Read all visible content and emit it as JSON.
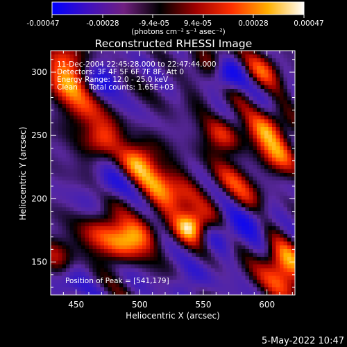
{
  "colorbar": {
    "ticks": [
      "-0.00047",
      "-0.00028",
      "-9.4e-05",
      "9.4e-05",
      "0.00028",
      "0.00047"
    ],
    "range": [
      -0.00047,
      0.00047
    ],
    "units": "(photons cm⁻² s⁻¹ asec⁻²)",
    "colors": [
      "#0000ff",
      "#4010c0",
      "#702080",
      "#000000",
      "#a00000",
      "#ff3000",
      "#ffb000",
      "#ffffff"
    ]
  },
  "chart_data": {
    "type": "heatmap",
    "title": "Reconstructed RHESSI Image",
    "xlabel": "Heliocentric X (arcsec)",
    "ylabel": "Heliocentric Y (arcsec)",
    "xlim": [
      430,
      622
    ],
    "ylim": [
      124,
      317
    ],
    "xticks": [
      450,
      500,
      550,
      600
    ],
    "yticks": [
      150,
      200,
      250,
      300
    ],
    "peak": {
      "x": 541,
      "y": 179
    },
    "sources": [
      {
        "x": 541,
        "y": 179,
        "intensity": 1.0
      },
      {
        "x": 530,
        "y": 200,
        "intensity": 0.5
      },
      {
        "x": 500,
        "y": 230,
        "intensity": 0.7
      },
      {
        "x": 470,
        "y": 248,
        "intensity": 0.6
      },
      {
        "x": 515,
        "y": 212,
        "intensity": 0.55
      },
      {
        "x": 445,
        "y": 290,
        "intensity": 0.65
      },
      {
        "x": 440,
        "y": 310,
        "intensity": 0.55
      },
      {
        "x": 455,
        "y": 270,
        "intensity": 0.45
      },
      {
        "x": 600,
        "y": 255,
        "intensity": 0.65
      },
      {
        "x": 565,
        "y": 250,
        "intensity": 0.5
      },
      {
        "x": 610,
        "y": 235,
        "intensity": 0.55
      },
      {
        "x": 485,
        "y": 165,
        "intensity": 0.6
      },
      {
        "x": 470,
        "y": 175,
        "intensity": 0.5
      },
      {
        "x": 500,
        "y": 170,
        "intensity": 0.45
      },
      {
        "x": 610,
        "y": 150,
        "intensity": 0.7
      },
      {
        "x": 618,
        "y": 135,
        "intensity": 0.55
      },
      {
        "x": 595,
        "y": 300,
        "intensity": 0.45
      },
      {
        "x": 560,
        "y": 310,
        "intensity": 0.35
      },
      {
        "x": 570,
        "y": 215,
        "intensity": 0.35
      },
      {
        "x": 585,
        "y": 200,
        "intensity": 0.3
      },
      {
        "x": 435,
        "y": 155,
        "intensity": 0.4
      },
      {
        "x": 555,
        "y": 285,
        "intensity": 0.3
      }
    ],
    "negatives": [
      {
        "x": 565,
        "y": 295,
        "intensity": 0.9
      },
      {
        "x": 470,
        "y": 295,
        "intensity": 0.5
      },
      {
        "x": 475,
        "y": 210,
        "intensity": 0.35
      },
      {
        "x": 570,
        "y": 175,
        "intensity": 0.4
      },
      {
        "x": 445,
        "y": 135,
        "intensity": 0.3
      },
      {
        "x": 540,
        "y": 135,
        "intensity": 0.3
      },
      {
        "x": 590,
        "y": 185,
        "intensity": 0.35
      }
    ]
  },
  "annotations": {
    "time": "11-Dec-2004 22:45:28.000 to 22:47:44.000",
    "detectors": "Detectors: 3F 4F 5F 6F 7F 8F, Att 0",
    "energy": "Energy Range: 12.0 - 25.0 keV",
    "clean": "Clean     Total counts: 1.65E+03",
    "peak": "Position of Peak = [541,179]"
  },
  "footer": {
    "date": "5-May-2022 10:47"
  }
}
